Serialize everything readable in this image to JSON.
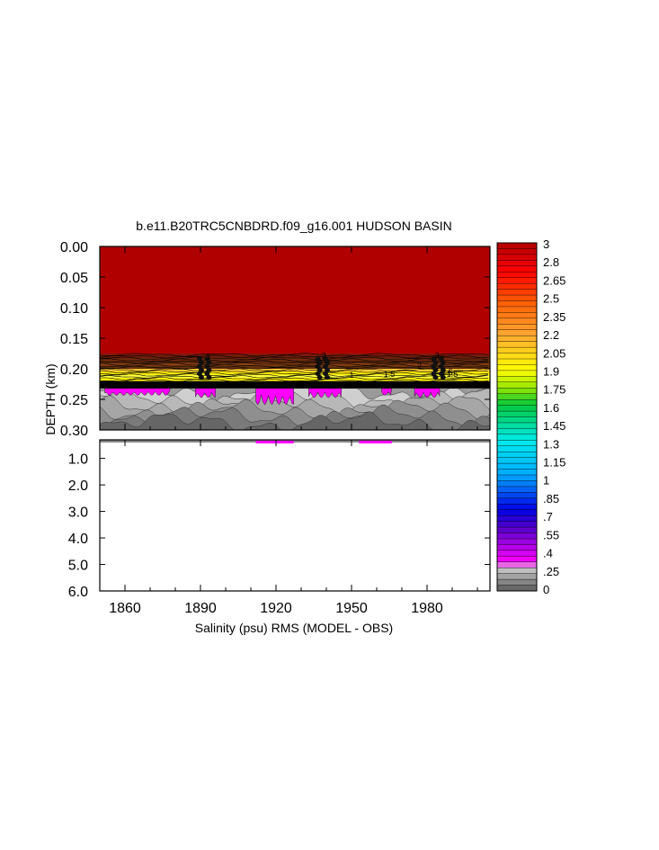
{
  "chart_data": {
    "type": "heatmap",
    "title": "b.e11.B20TRC5CNBDRD.f09_g16.001 HUDSON BASIN",
    "xlabel": "Salinity (psu) RMS (MODEL - OBS)",
    "ylabel": "DEPTH (km)",
    "x_ticks": [
      "1860",
      "1890",
      "1920",
      "1950",
      "1980"
    ],
    "x_tick_values": [
      1860,
      1890,
      1920,
      1950,
      1980
    ],
    "xlim": [
      1850,
      2005
    ],
    "upper_panel": {
      "ylim": [
        0.0,
        0.3
      ],
      "y_ticks": [
        "0.00",
        "0.05",
        "0.10",
        "0.15",
        "0.20",
        "0.25",
        "0.30"
      ],
      "y_tick_values": [
        0.0,
        0.05,
        0.1,
        0.15,
        0.2,
        0.25,
        0.3
      ]
    },
    "lower_panel": {
      "ylim": [
        0.3,
        6.0
      ],
      "y_ticks": [
        "1.0",
        "2.0",
        "3.0",
        "4.0",
        "5.0",
        "6.0"
      ],
      "y_tick_values": [
        1.0,
        2.0,
        3.0,
        4.0,
        5.0,
        6.0
      ]
    },
    "depth_structure": [
      {
        "depth_top": 0.0,
        "depth_bottom": 0.175,
        "value": 3.0
      },
      {
        "depth_top": 0.175,
        "depth_bottom": 0.2,
        "value": 2.7
      },
      {
        "depth_top": 0.2,
        "depth_bottom": 0.22,
        "value": 1.95
      },
      {
        "depth_top": 0.22,
        "depth_bottom": 0.232,
        "value": 1.75
      },
      {
        "depth_top": 0.232,
        "depth_bottom": 0.3,
        "value": 0.1
      },
      {
        "depth_top": 0.3,
        "depth_bottom": 6.0,
        "value": null
      }
    ],
    "contour_labels": [
      {
        "text": "3",
        "x": 1893,
        "depth": 0.185
      },
      {
        "text": "3",
        "x": 1939,
        "depth": 0.183
      },
      {
        "text": "3",
        "x": 1984,
        "depth": 0.183
      },
      {
        "text": "2",
        "x": 1936,
        "depth": 0.198
      },
      {
        "text": "2",
        "x": 1977,
        "depth": 0.2
      },
      {
        "text": "2.5",
        "x": 1988,
        "depth": 0.21
      },
      {
        "text": "1.5",
        "x": 1965,
        "depth": 0.213
      },
      {
        "text": "1.5",
        "x": 1990,
        "depth": 0.213
      },
      {
        "text": "1",
        "x": 1950,
        "depth": 0.215
      }
    ],
    "colorbar": {
      "labels": [
        "3",
        "2.8",
        "2.65",
        "2.5",
        "2.35",
        "2.2",
        "2.05",
        "1.9",
        "1.75",
        "1.6",
        "1.45",
        "1.3",
        "1.15",
        "1",
        ".85",
        ".7",
        ".55",
        ".4",
        ".25",
        "0"
      ],
      "min": 0,
      "max": 3,
      "steps": 60
    },
    "colors": {
      "top_fill": "#b00000",
      "dark_band": "#5a1e0a",
      "yellow_band": "#ffff00",
      "black_band": "#000000",
      "gray_fill": "#9a9a9a",
      "magenta": "#ff00ff"
    }
  }
}
